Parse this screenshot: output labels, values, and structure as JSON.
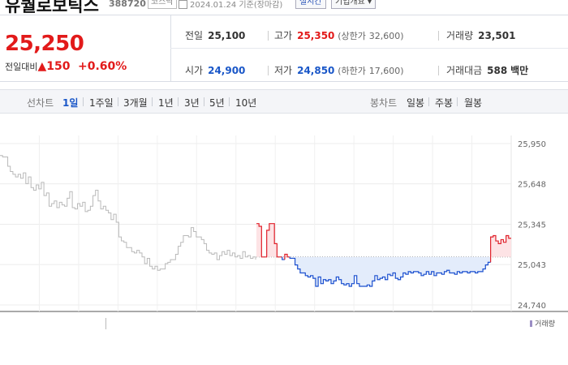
{
  "header": {
    "company": "유퀄로보틱스",
    "code": "388720",
    "market": "코스닥",
    "date": "2024.01.24 기준(장마감)",
    "realtime_btn": "실시간",
    "overview_btn": "기업개요 ▾"
  },
  "quote": {
    "price": "25,250",
    "change_label": "전일대비",
    "change_arrow": "▲",
    "change_value": "150",
    "change_pct": "+0.60%",
    "prev_close_label": "전일",
    "prev_close": "25,100",
    "high_label": "고가",
    "high": "25,350",
    "upper_limit_label": "(상한가",
    "upper_limit": "32,600)",
    "volume_label": "거래량",
    "volume": "23,501",
    "open_label": "시가",
    "open": "24,900",
    "low_label": "저가",
    "low": "24,850",
    "lower_limit_label": "(하한가",
    "lower_limit": "17,600)",
    "amount_label": "거래대금",
    "amount": "588",
    "amount_unit": "백만"
  },
  "toolbar": {
    "line_label": "선차트",
    "periods": [
      "1일",
      "1주일",
      "3개월",
      "1년",
      "3년",
      "5년",
      "10년"
    ],
    "active_period": "1일",
    "candle_label": "봉차트",
    "candles": [
      "일봉",
      "주봉",
      "월봉"
    ]
  },
  "chart_data": {
    "type": "line",
    "y_ticks": [
      "25,950",
      "25,648",
      "25,345",
      "25,043",
      "24,740"
    ],
    "ylim": [
      24740,
      25950
    ],
    "reference_value": 25100,
    "colors": {
      "up": "#e0202a",
      "down": "#1a4fcf",
      "past": "#b9b9b9",
      "up_fill": "#fde3e5",
      "down_fill": "#e3ecfb"
    },
    "previous_session": [
      25860,
      25850,
      25850,
      25780,
      25740,
      25720,
      25700,
      25720,
      25690,
      25730,
      25650,
      25700,
      25620,
      25600,
      25640,
      25610,
      25660,
      25560,
      25580,
      25480,
      25500,
      25520,
      25470,
      25510,
      25490,
      25480,
      25540,
      25590,
      25470,
      25460,
      25500,
      25480,
      25510,
      25440,
      25450,
      25480,
      25560,
      25600,
      25520,
      25460,
      25480,
      25450,
      25430,
      25380,
      25420,
      25360,
      25250,
      25220,
      25210,
      25170,
      25170,
      25140,
      25130,
      25150,
      25130,
      25100,
      25050,
      25090,
      25030,
      25010,
      25030,
      25000,
      25010,
      25010,
      25050,
      25060,
      25080,
      25080,
      25120,
      25180,
      25210,
      25260,
      25260,
      25250,
      25320,
      25290,
      25250,
      25250,
      25230,
      25200,
      25150,
      25130,
      25120,
      25130,
      25080,
      25110,
      25140,
      25120,
      25150,
      25110,
      25130,
      25100,
      25110,
      25090,
      25140,
      25100,
      25110,
      25090,
      25100,
      25080
    ],
    "today_session": [
      25350,
      25330,
      25100,
      25100,
      25300,
      25350,
      25350,
      25200,
      25100,
      25100,
      25080,
      25120,
      25100,
      25090,
      25090,
      25040,
      25010,
      24980,
      24980,
      24960,
      24950,
      24960,
      24940,
      24880,
      24950,
      24900,
      24930,
      24920,
      24930,
      24900,
      24920,
      24950,
      24930,
      24900,
      24890,
      24900,
      24880,
      24900,
      24960,
      24900,
      24880,
      24880,
      24880,
      24890,
      24880,
      24920,
      24960,
      24930,
      24940,
      24950,
      24930,
      24970,
      24960,
      24980,
      24940,
      24930,
      24950,
      24980,
      24970,
      24990,
      24980,
      24990,
      24990,
      24980,
      24960,
      24970,
      24990,
      24970,
      24990,
      24960,
      24980,
      24980,
      24970,
      24990,
      25000,
      24980,
      24980,
      24970,
      24990,
      24980,
      24990,
      24990,
      24980,
      24990,
      24990,
      24980,
      24990,
      24990,
      25010,
      25040,
      25060,
      25250,
      25260,
      25220,
      25200,
      25230,
      25210,
      25260,
      25240,
      25240
    ]
  },
  "volume": {
    "legend": "거래량"
  }
}
